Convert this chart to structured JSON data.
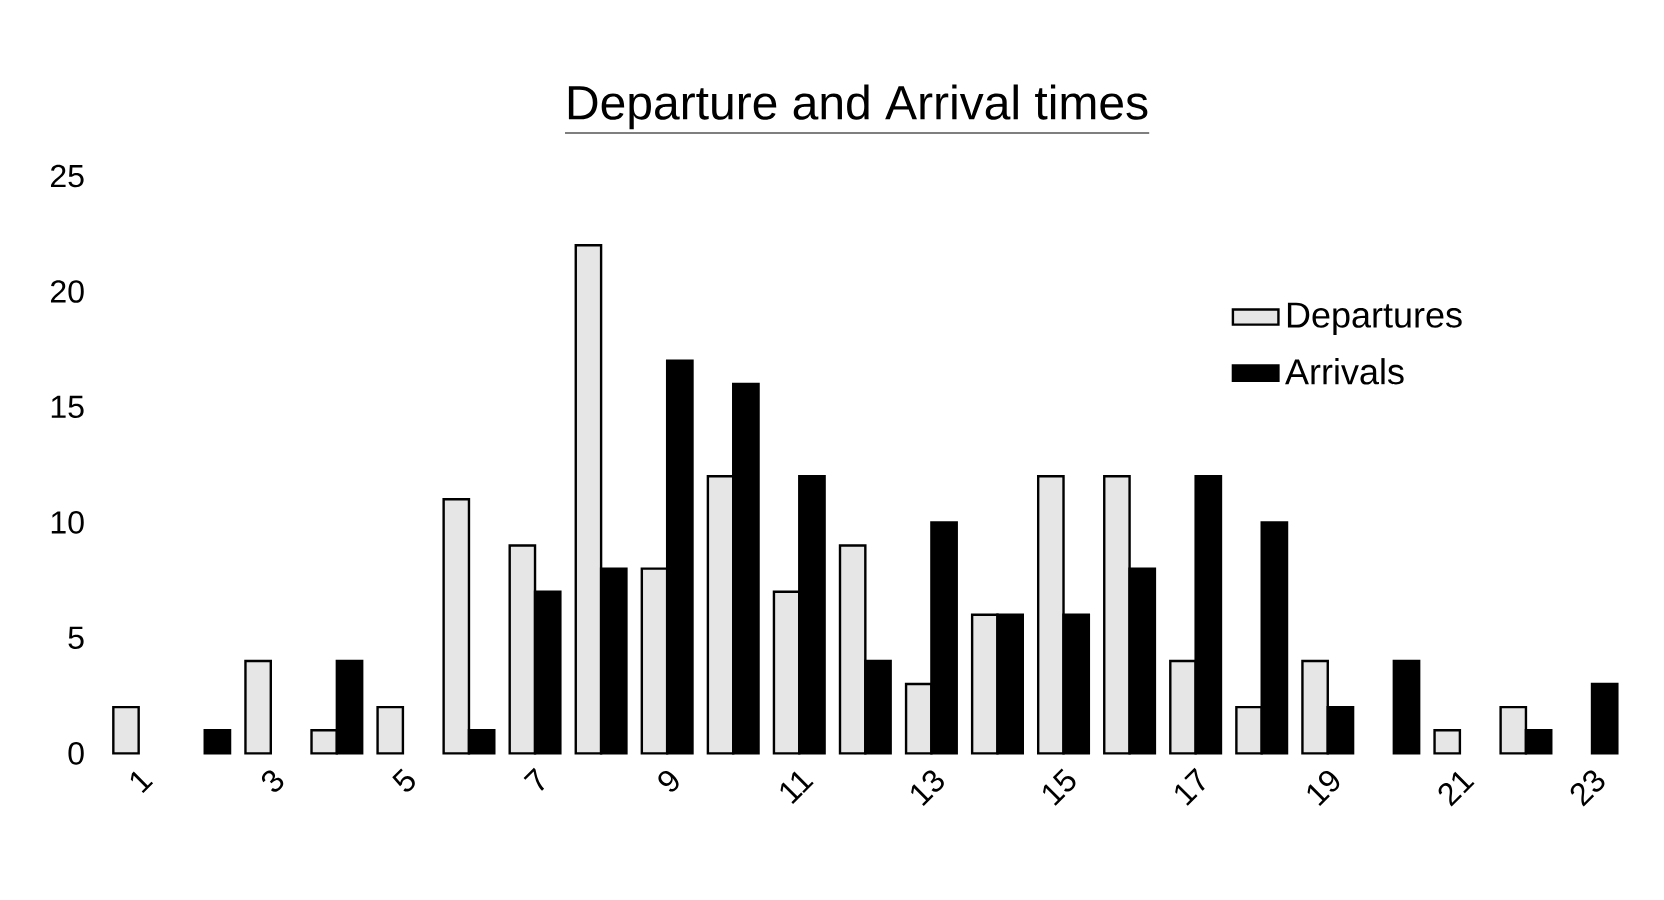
{
  "chart_data": {
    "type": "bar",
    "title": "Departure and Arrival times",
    "categories": [
      "1",
      null,
      "3",
      null,
      "5",
      null,
      "7",
      null,
      "9",
      null,
      "11",
      null,
      "13",
      null,
      "15",
      null,
      "17",
      null,
      "19",
      null,
      "21",
      null,
      "23"
    ],
    "series": [
      {
        "name": "Departures",
        "color": "#e6e6e6",
        "values": [
          2,
          0,
          4,
          1,
          2,
          11,
          9,
          22,
          8,
          12,
          7,
          9,
          3,
          6,
          12,
          12,
          4,
          2,
          4,
          0,
          1,
          2,
          0
        ]
      },
      {
        "name": "Arrivals",
        "color": "#000000",
        "values": [
          0,
          1,
          0,
          4,
          0,
          1,
          7,
          8,
          17,
          16,
          12,
          4,
          10,
          6,
          6,
          8,
          12,
          10,
          2,
          4,
          0,
          1,
          3
        ]
      }
    ],
    "ylim": [
      0,
      25
    ],
    "yticks": [
      0,
      5,
      10,
      15,
      20,
      25
    ],
    "legend": "right",
    "grid": false
  }
}
